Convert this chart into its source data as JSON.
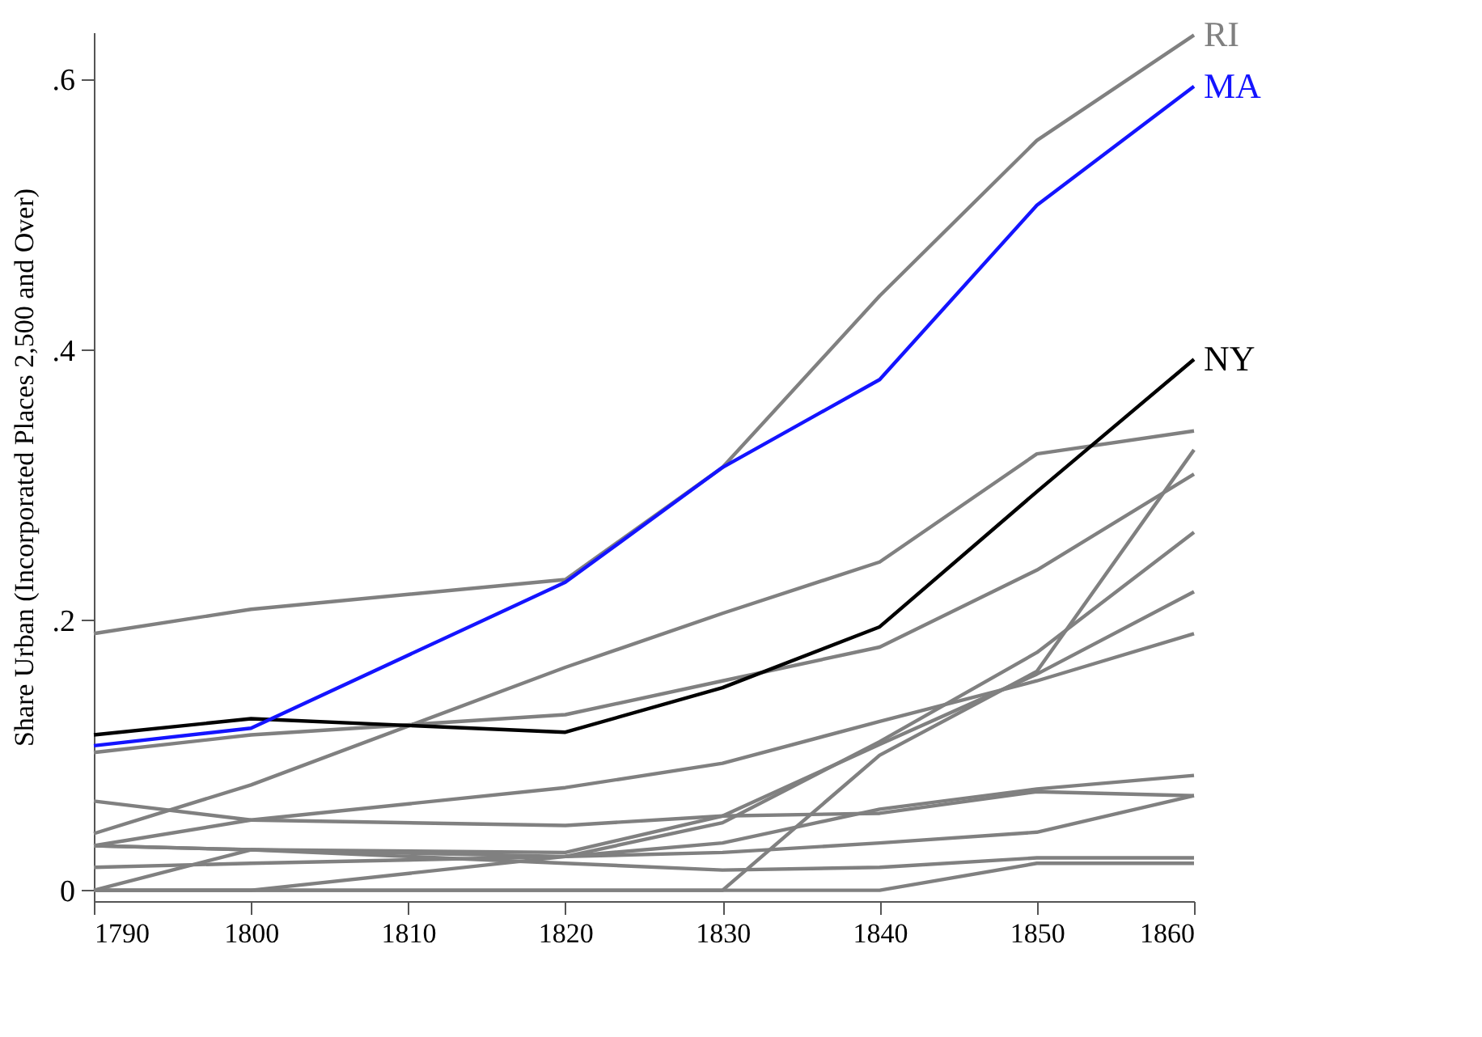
{
  "chart_data": {
    "type": "line",
    "ylabel": "Share Urban (Incorporated Places 2,500 and Over)",
    "x": [
      1790,
      1800,
      1820,
      1830,
      1840,
      1850,
      1860
    ],
    "xlim": [
      1790,
      1860
    ],
    "xticks": [
      1790,
      1800,
      1810,
      1820,
      1830,
      1840,
      1850,
      1860
    ],
    "ylim": [
      -0.008,
      0.635
    ],
    "yticks": [
      {
        "value": 0,
        "label": "0"
      },
      {
        "value": 0.2,
        "label": ".2"
      },
      {
        "value": 0.4,
        "label": ".4"
      },
      {
        "value": 0.6,
        "label": ".6"
      }
    ],
    "grid": false,
    "marker": "none",
    "line_style": "solid",
    "series": [
      {
        "color": "#808080",
        "values": [
          0.102,
          0.115,
          0.13,
          0.155,
          0.18,
          0.237,
          0.308
        ]
      },
      {
        "color": "#808080",
        "values": [
          0.042,
          0.078,
          0.165,
          0.205,
          0.243,
          0.323,
          0.34
        ]
      },
      {
        "color": "#808080",
        "values": [
          0,
          0,
          0,
          0,
          0.1,
          0.162,
          0.326
        ]
      },
      {
        "color": "#808080",
        "values": [
          0,
          0,
          0.025,
          0.05,
          0.11,
          0.176,
          0.265
        ]
      },
      {
        "color": "#808080",
        "values": [
          0,
          0.03,
          0.028,
          0.055,
          0.108,
          0.16,
          0.221
        ]
      },
      {
        "color": "#808080",
        "values": [
          0.033,
          0.052,
          0.076,
          0.094,
          0.125,
          0.155,
          0.19
        ]
      },
      {
        "color": "#808080",
        "values": [
          0.066,
          0.052,
          0.048,
          0.055,
          0.057,
          0.073,
          0.07
        ]
      },
      {
        "color": "#808080",
        "values": [
          0.033,
          0.03,
          0.025,
          0.035,
          0.06,
          0.075,
          0.085
        ]
      },
      {
        "color": "#808080",
        "values": [
          0.017,
          0.02,
          0.025,
          0.028,
          0.035,
          0.043,
          0.07
        ]
      },
      {
        "color": "#808080",
        "values": [
          0,
          0,
          0,
          0,
          0,
          0.02,
          0.02
        ]
      },
      {
        "color": "#808080",
        "values": [
          0.033,
          0.03,
          0.02,
          0.015,
          0.017,
          0.024,
          0.024
        ]
      },
      {
        "name": "RI",
        "color": "#808080",
        "values": [
          0.19,
          0.208,
          0.23,
          0.313,
          0.44,
          0.555,
          0.633
        ]
      },
      {
        "name": "NY",
        "color": "#000000",
        "values": [
          0.115,
          0.127,
          0.117,
          0.15,
          0.195,
          0.295,
          0.393
        ]
      },
      {
        "name": "MA",
        "color": "#1414ff",
        "values": [
          0.107,
          0.12,
          0.228,
          0.313,
          0.378,
          0.507,
          0.595
        ]
      }
    ]
  }
}
